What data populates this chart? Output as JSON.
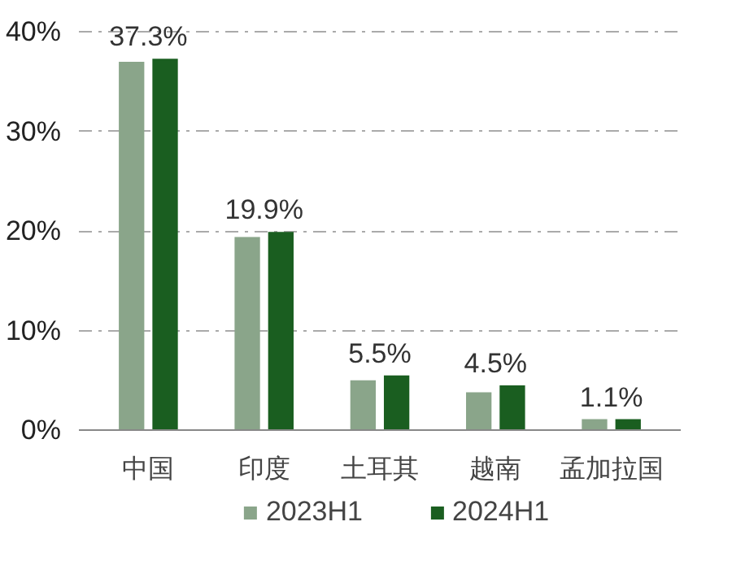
{
  "chart_data": {
    "type": "bar",
    "categories": [
      "中国",
      "印度",
      "土耳其",
      "越南",
      "孟加拉国"
    ],
    "series": [
      {
        "name": "2023H1",
        "color": "#8aa58a",
        "values": [
          37.0,
          19.4,
          5.0,
          3.8,
          1.1
        ]
      },
      {
        "name": "2024H1",
        "color": "#1a5e20",
        "values": [
          37.3,
          19.9,
          5.5,
          4.5,
          1.1
        ],
        "value_labels": [
          "37.3%",
          "19.9%",
          "5.5%",
          "4.5%",
          "1.1%"
        ]
      }
    ],
    "ylim": [
      0,
      40
    ],
    "yticks": [
      {
        "value": 0,
        "label": "0%"
      },
      {
        "value": 10,
        "label": "10%"
      },
      {
        "value": 20,
        "label": "20%"
      },
      {
        "value": 30,
        "label": "30%"
      },
      {
        "value": 40,
        "label": "40%"
      }
    ],
    "grid": "y",
    "legend": "bottom"
  }
}
